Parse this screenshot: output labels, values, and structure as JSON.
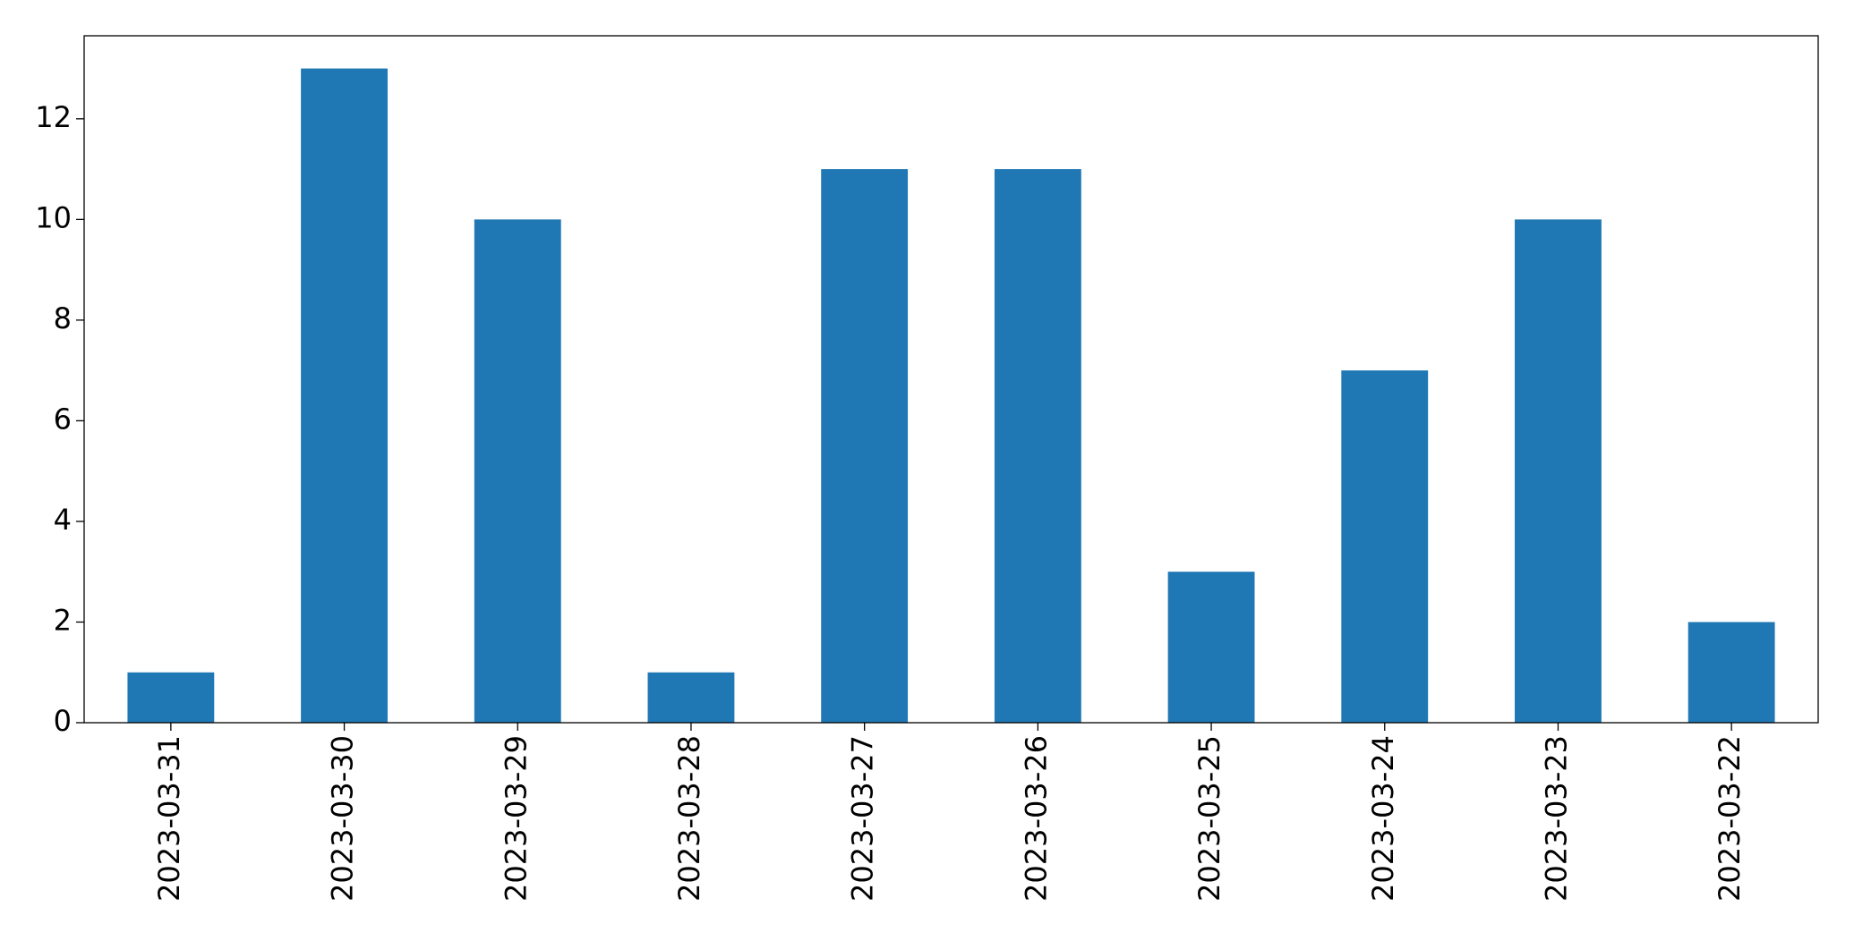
{
  "chart_data": {
    "type": "bar",
    "categories": [
      "2023-03-31",
      "2023-03-30",
      "2023-03-29",
      "2023-03-28",
      "2023-03-27",
      "2023-03-26",
      "2023-03-25",
      "2023-03-24",
      "2023-03-23",
      "2023-03-22"
    ],
    "values": [
      1,
      13,
      10,
      1,
      11,
      11,
      3,
      7,
      10,
      2
    ],
    "color": "#1f77b4",
    "ylim": [
      0,
      13.65
    ],
    "yticks": [
      0,
      2,
      4,
      6,
      8,
      10,
      12
    ],
    "grid": false
  }
}
